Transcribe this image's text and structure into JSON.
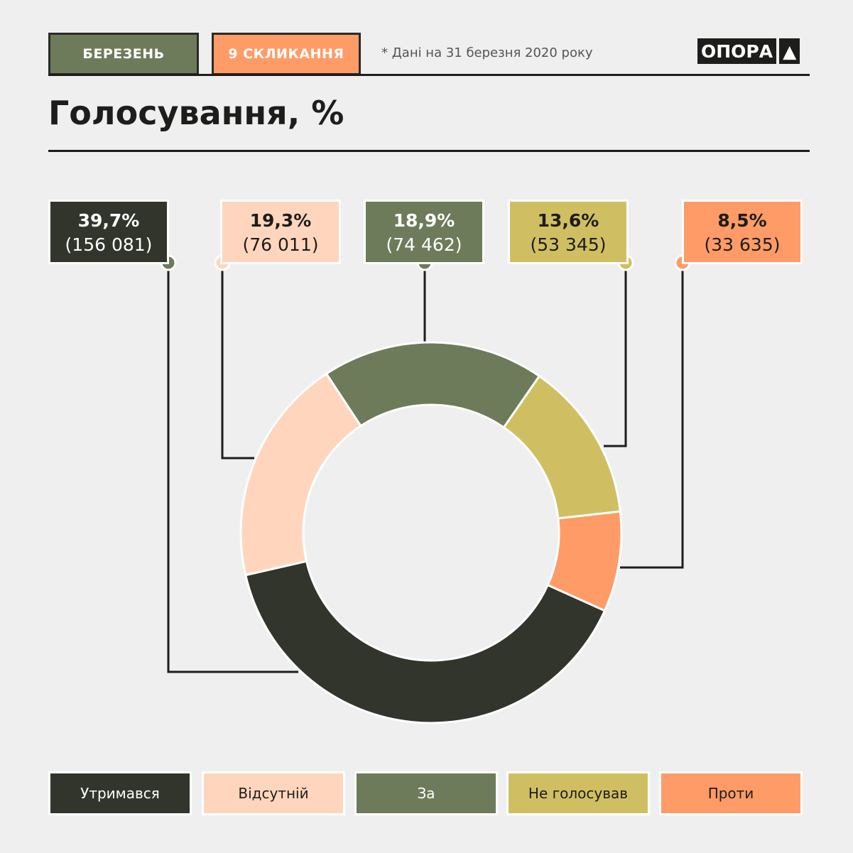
{
  "header": {
    "month": "БЕРЕЗЕНЬ",
    "convocation": "9 СКЛИКАННЯ",
    "note": "* Дані на 31 березня 2020 року",
    "logo": "ОПОРА",
    "title": "Голосування, %"
  },
  "colors": {
    "month_tag": "#6d7b5a",
    "convocation_tag": "#ff9b66"
  },
  "chart_data": {
    "type": "pie",
    "donut": true,
    "title": "Голосування, %",
    "legend_placement": "bottom",
    "slices": [
      {
        "name": "За",
        "percent": 18.9,
        "percent_label": "18,9%",
        "count_label": "(74 462)",
        "color": "#6d7b5a",
        "text": "#fff"
      },
      {
        "name": "Не голосував",
        "percent": 13.6,
        "percent_label": "13,6%",
        "count_label": "(53 345)",
        "color": "#cfbf62",
        "text": "#1d1d1b"
      },
      {
        "name": "Проти",
        "percent": 8.5,
        "percent_label": "8,5%",
        "count_label": "(33 635)",
        "color": "#ff9b66",
        "text": "#1d1d1b"
      },
      {
        "name": "Утримався",
        "percent": 39.7,
        "percent_label": "39,7%",
        "count_label": "(156 081)",
        "color": "#32352b",
        "text": "#fff"
      },
      {
        "name": "Відсутній",
        "percent": 19.3,
        "percent_label": "19,3%",
        "count_label": "(76 011)",
        "color": "#ffd6bd",
        "text": "#1d1d1b"
      }
    ]
  }
}
